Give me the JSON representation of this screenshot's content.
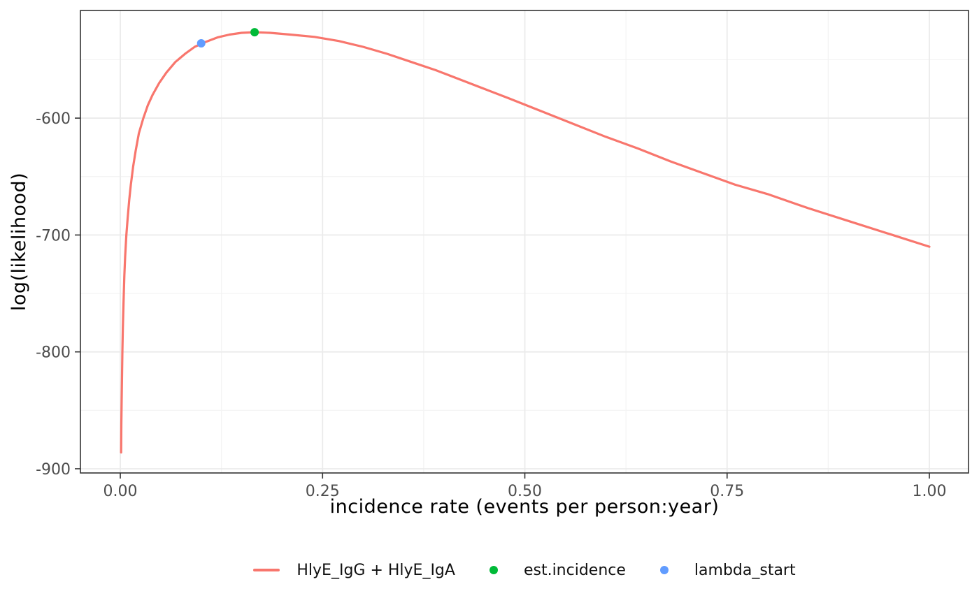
{
  "chart_data": {
    "type": "line",
    "title": "",
    "xlabel": "incidence rate (events per person:year)",
    "ylabel": "log(likelihood)",
    "xlim": [
      -0.0493,
      1.0484
    ],
    "ylim": [
      -903.6,
      -507.9
    ],
    "grid": true,
    "legend_position": "bottom",
    "x_ticks": {
      "values": [
        0.0,
        0.25,
        0.5,
        0.75,
        1.0
      ],
      "labels": [
        "0.00",
        "0.25",
        "0.50",
        "0.75",
        "1.00"
      ]
    },
    "x_minor_ticks": [
      0.125,
      0.375,
      0.625,
      0.875
    ],
    "y_ticks": {
      "values": [
        -600,
        -700,
        -800,
        -900
      ],
      "labels": [
        "-600",
        "-700",
        "-800",
        "-900"
      ]
    },
    "y_minor_ticks": [
      -550,
      -650,
      -750,
      -850
    ],
    "series": [
      {
        "name": "HlyE_IgG + HlyE_IgA",
        "kind": "line",
        "color": "#F8766D",
        "x": [
          0.001,
          0.0013,
          0.0017,
          0.0021,
          0.0026,
          0.0032,
          0.004,
          0.005,
          0.006,
          0.0075,
          0.009,
          0.011,
          0.013,
          0.016,
          0.019,
          0.023,
          0.0285,
          0.034,
          0.04,
          0.048,
          0.057,
          0.068,
          0.08,
          0.092,
          0.105,
          0.12,
          0.135,
          0.15,
          0.166,
          0.185,
          0.21,
          0.24,
          0.27,
          0.3,
          0.33,
          0.36,
          0.39,
          0.42,
          0.45,
          0.48,
          0.52,
          0.56,
          0.6,
          0.64,
          0.68,
          0.72,
          0.76,
          0.8,
          0.85,
          0.9,
          0.95,
          1.0
        ],
        "y": [
          -886,
          -862,
          -840,
          -820,
          -800,
          -779,
          -757,
          -735,
          -718,
          -700,
          -686,
          -670,
          -657,
          -641,
          -628,
          -613,
          -600,
          -589,
          -580,
          -570,
          -561,
          -552,
          -545,
          -539,
          -535,
          -531,
          -528.5,
          -527,
          -526.5,
          -527,
          -528.5,
          -530.5,
          -534,
          -539,
          -545,
          -552,
          -559,
          -567,
          -575,
          -583,
          -594,
          -605,
          -616,
          -626,
          -637,
          -647,
          -657,
          -665,
          -677,
          -688,
          -699,
          -710
        ]
      },
      {
        "name": "est.incidence",
        "kind": "point",
        "color": "#00BA38",
        "x": [
          0.166
        ],
        "y": [
          -526.5
        ]
      },
      {
        "name": "lambda_start",
        "kind": "point",
        "color": "#619CFF",
        "x": [
          0.1
        ],
        "y": [
          -536
        ]
      }
    ],
    "colors": {
      "panel_background": "#FFFFFF",
      "panel_border": "#333333",
      "grid_major": "#EBEBEB",
      "grid_minor": "#F3F3F3",
      "tick_mark": "#333333",
      "tick_label": "#4D4D4D",
      "axis_title": "#000000"
    }
  }
}
